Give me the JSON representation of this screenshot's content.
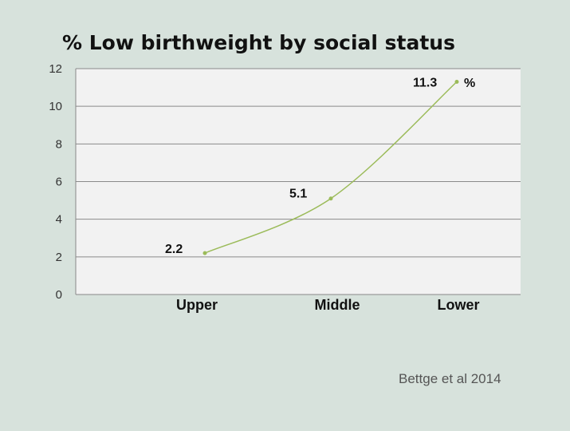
{
  "chart_data": {
    "type": "line",
    "title": "% Low birthweight by social status",
    "categories": [
      "Upper",
      "Middle",
      "Lower"
    ],
    "values": [
      2.2,
      5.1,
      11.3
    ],
    "data_labels": [
      "2.2",
      "5.1",
      "11.3"
    ],
    "unit_label": "%",
    "ylim": [
      0,
      12
    ],
    "yticks": [
      0,
      2,
      4,
      6,
      8,
      10,
      12
    ],
    "grid": true,
    "line_color": "#9bbb59",
    "plot_background": "#f2f2f2"
  },
  "source": "Bettge et al 2014"
}
